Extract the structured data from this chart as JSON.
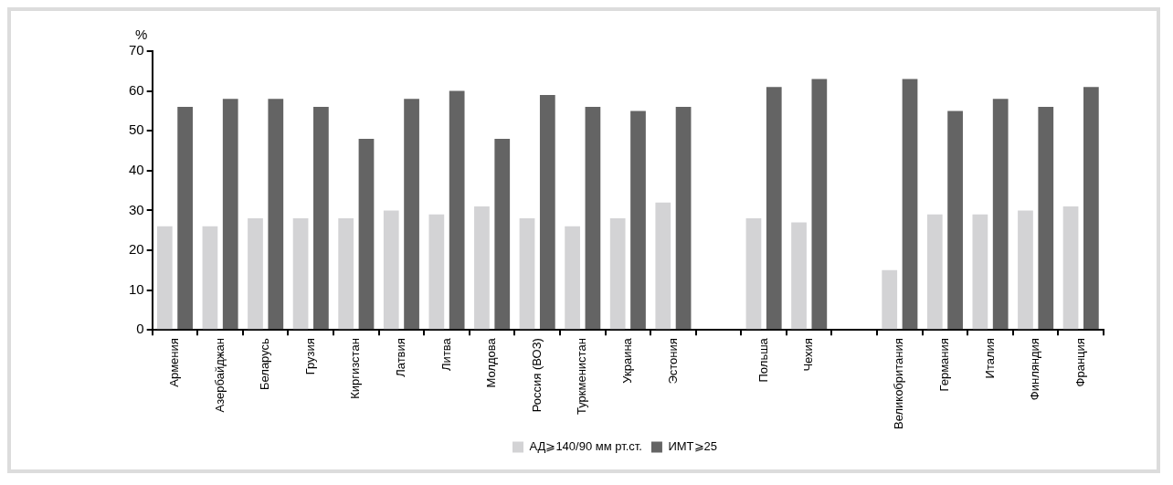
{
  "chart_data": {
    "type": "bar",
    "ylabel": "%",
    "categories": [
      "Армения",
      "Азербайджан",
      "Беларусь",
      "Грузия",
      "Киргизстан",
      "Латвия",
      "Литва",
      "Молдова",
      "Россия (ВОЗ)",
      "Туркменистан",
      "Украина",
      "Эстония",
      null,
      "Польша",
      "Чехия",
      null,
      "Великобритания",
      "Германия",
      "Италия",
      "Финляндия",
      "Франция"
    ],
    "series": [
      {
        "name": "АД⩾140/90 мм рт.ст.",
        "color": "#d3d3d5",
        "values": [
          26,
          26,
          28,
          28,
          28,
          30,
          29,
          31,
          28,
          26,
          28,
          32,
          null,
          28,
          27,
          null,
          15,
          29,
          29,
          30,
          31
        ]
      },
      {
        "name": "ИМТ⩾25",
        "color": "#646464",
        "values": [
          56,
          58,
          58,
          56,
          48,
          58,
          60,
          48,
          59,
          56,
          55,
          56,
          null,
          61,
          63,
          null,
          63,
          55,
          58,
          56,
          61
        ]
      }
    ],
    "ylim": [
      0,
      70
    ],
    "yticks": [
      0,
      10,
      20,
      30,
      40,
      50,
      60,
      70
    ],
    "grid": false,
    "legend": "bottom"
  }
}
